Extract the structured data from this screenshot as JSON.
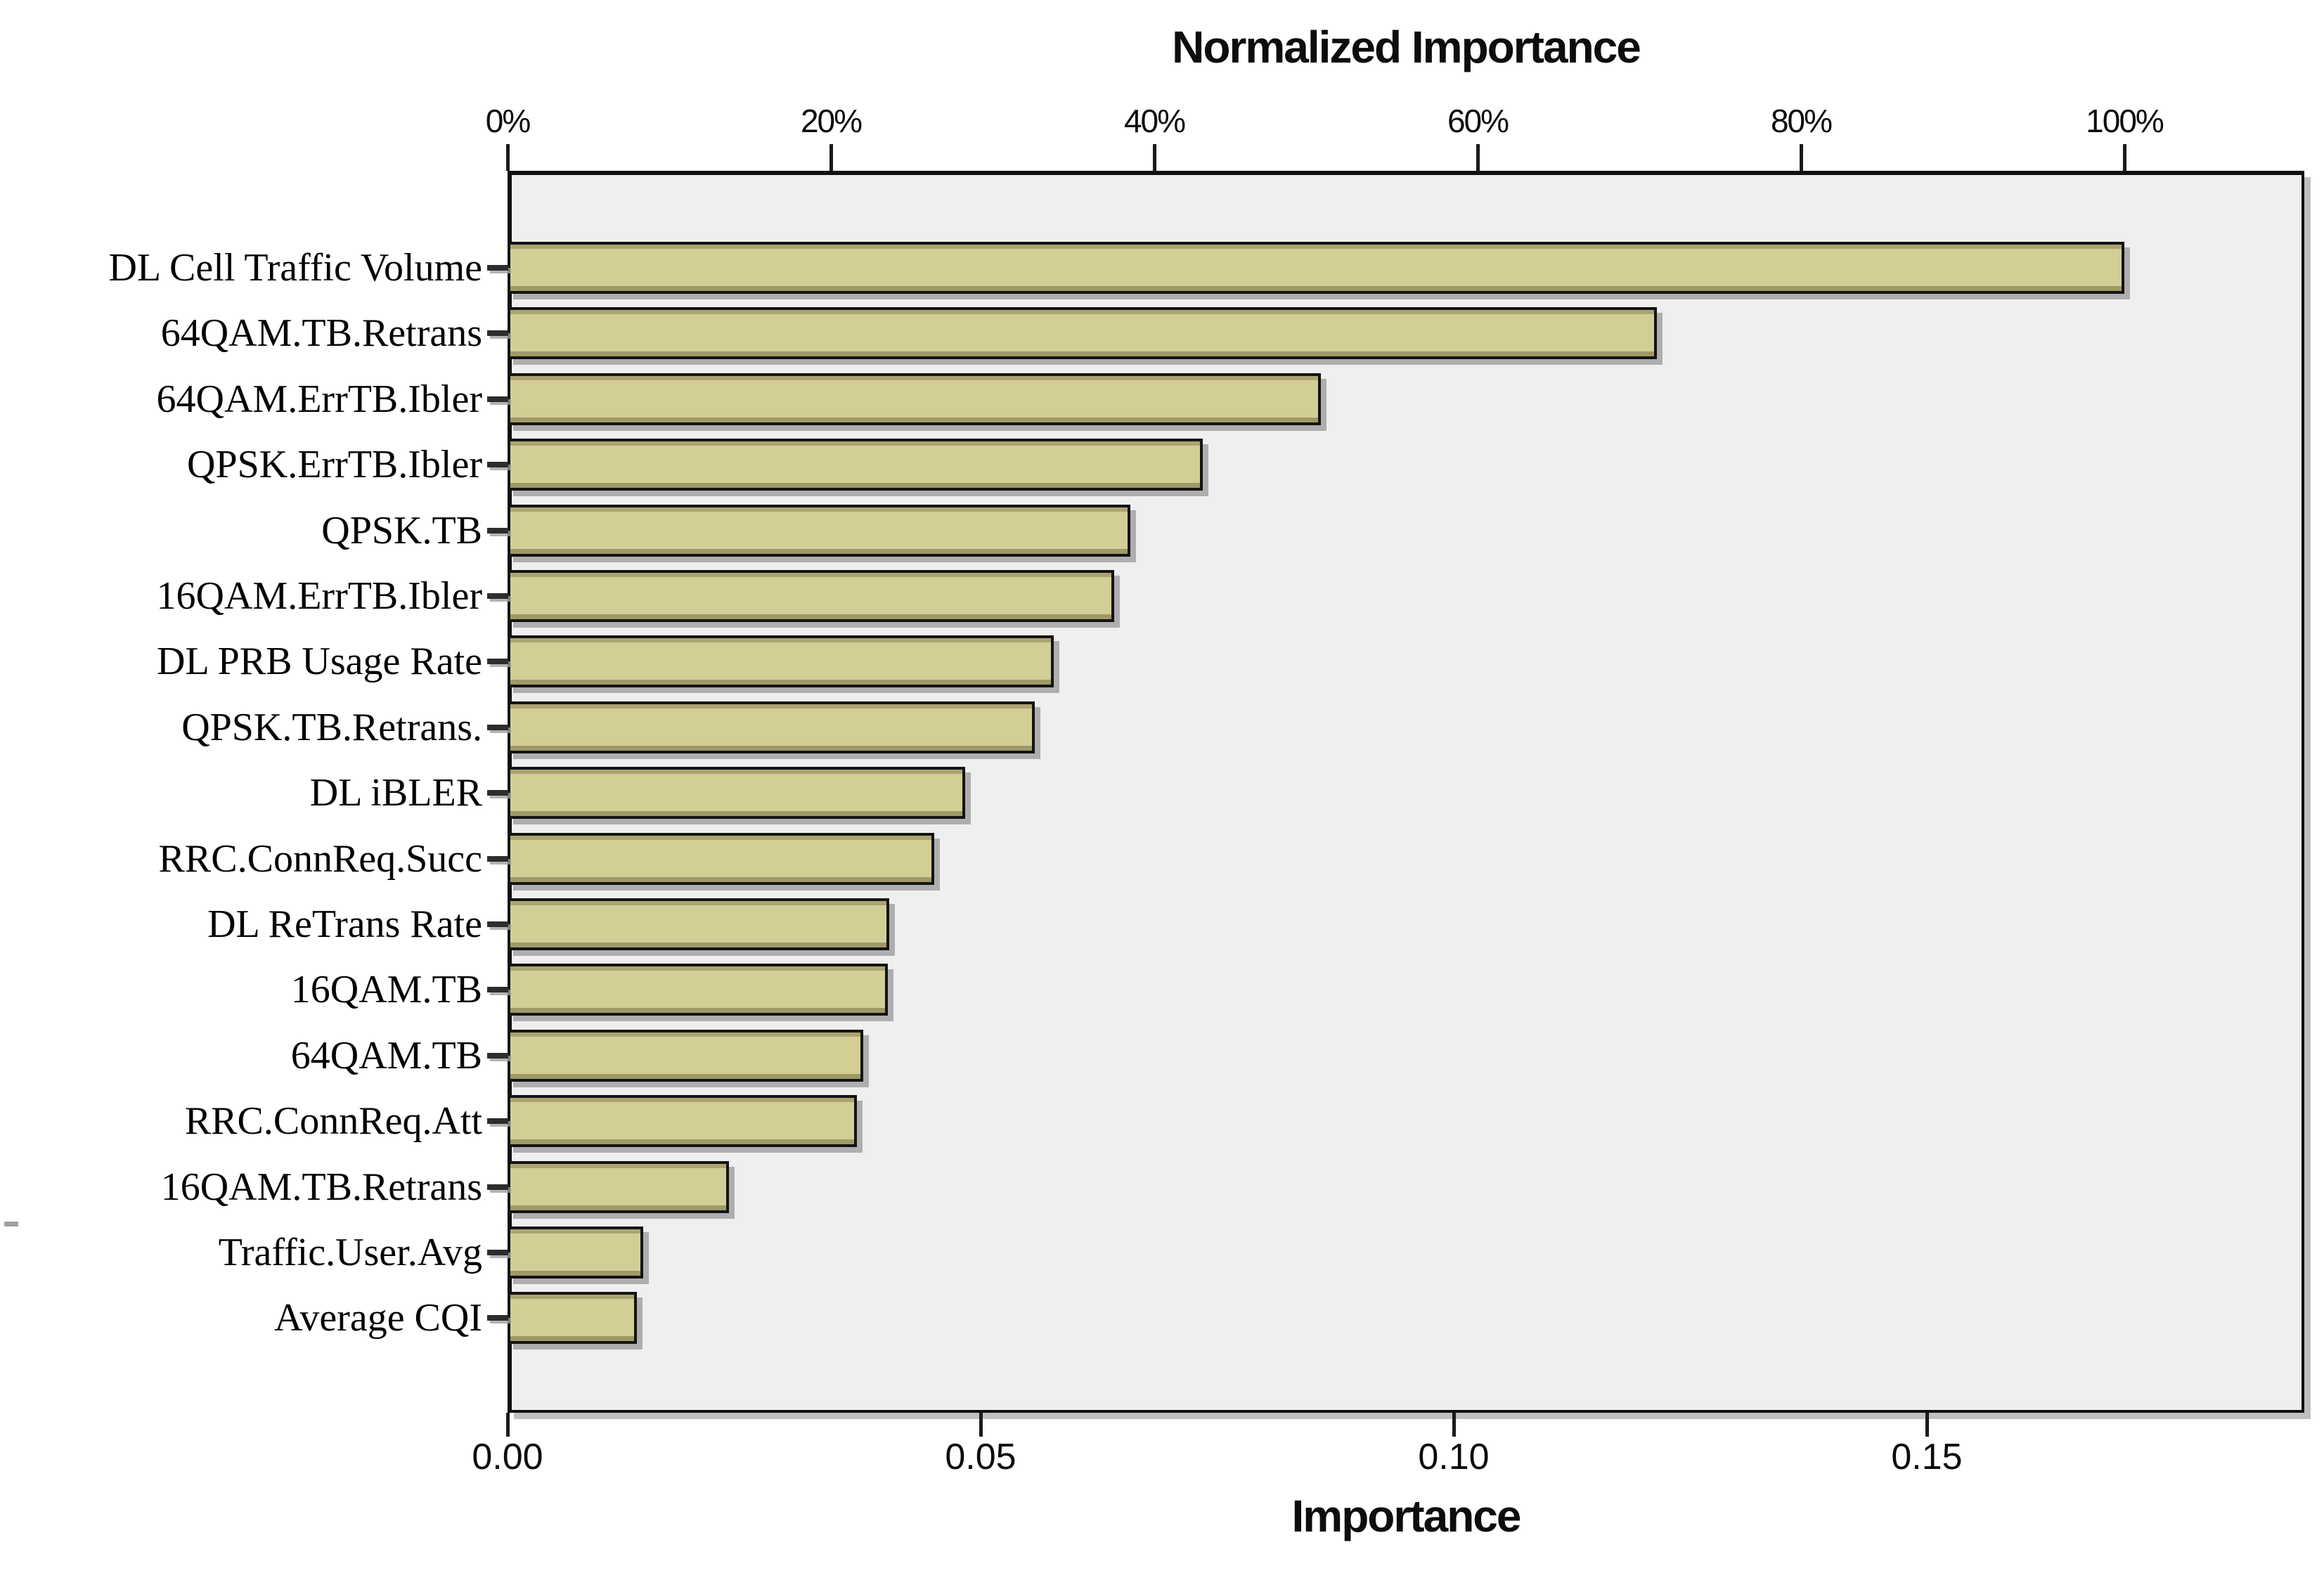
{
  "chart_data": {
    "type": "bar",
    "orientation": "horizontal",
    "title": "Normalized Importance",
    "xlabel_bottom": "Importance",
    "categories": [
      "DL Cell Traffic Volume",
      "64QAM.TB.Retrans",
      "64QAM.ErrTB.Ibler",
      "QPSK.ErrTB.Ibler",
      "QPSK.TB",
      "16QAM.ErrTB.Ibler",
      "DL PRB Usage Rate",
      "QPSK.TB.Retrans.",
      "DL iBLER",
      "RRC.ConnReq.Succ",
      "DL ReTrans Rate",
      "16QAM.TB",
      "64QAM.TB",
      "RRC.ConnReq.Att",
      "16QAM.TB.Retrans",
      "Traffic.User.Avg",
      "Average CQI"
    ],
    "series": [
      {
        "name": "Normalized Importance (%)",
        "values": [
          100,
          71.1,
          50.3,
          43.0,
          38.5,
          37.5,
          33.8,
          32.6,
          28.3,
          26.4,
          23.6,
          23.5,
          22.0,
          21.6,
          13.7,
          8.4,
          8.0
        ]
      },
      {
        "name": "Importance",
        "values": [
          0.171,
          0.122,
          0.086,
          0.073,
          0.066,
          0.064,
          0.058,
          0.056,
          0.048,
          0.045,
          0.04,
          0.04,
          0.038,
          0.037,
          0.023,
          0.014,
          0.014
        ]
      }
    ],
    "top_axis": {
      "label": "Normalized Importance",
      "ticks": [
        "0%",
        "20%",
        "40%",
        "60%",
        "80%",
        "100%"
      ],
      "range_pct": [
        0,
        111
      ]
    },
    "bottom_axis": {
      "label": "Importance",
      "ticks": [
        "0.00",
        "0.05",
        "0.10",
        "0.15"
      ],
      "range": [
        0,
        0.19
      ]
    },
    "legend": "none",
    "grid": false,
    "colors": {
      "bar_fill": "#d3cd96",
      "bar_border": "#141414",
      "plot_background": "#f0efef",
      "page_background": "#ffffff",
      "text": "#0d0d0d",
      "shadow": "#9e9e9e"
    }
  }
}
